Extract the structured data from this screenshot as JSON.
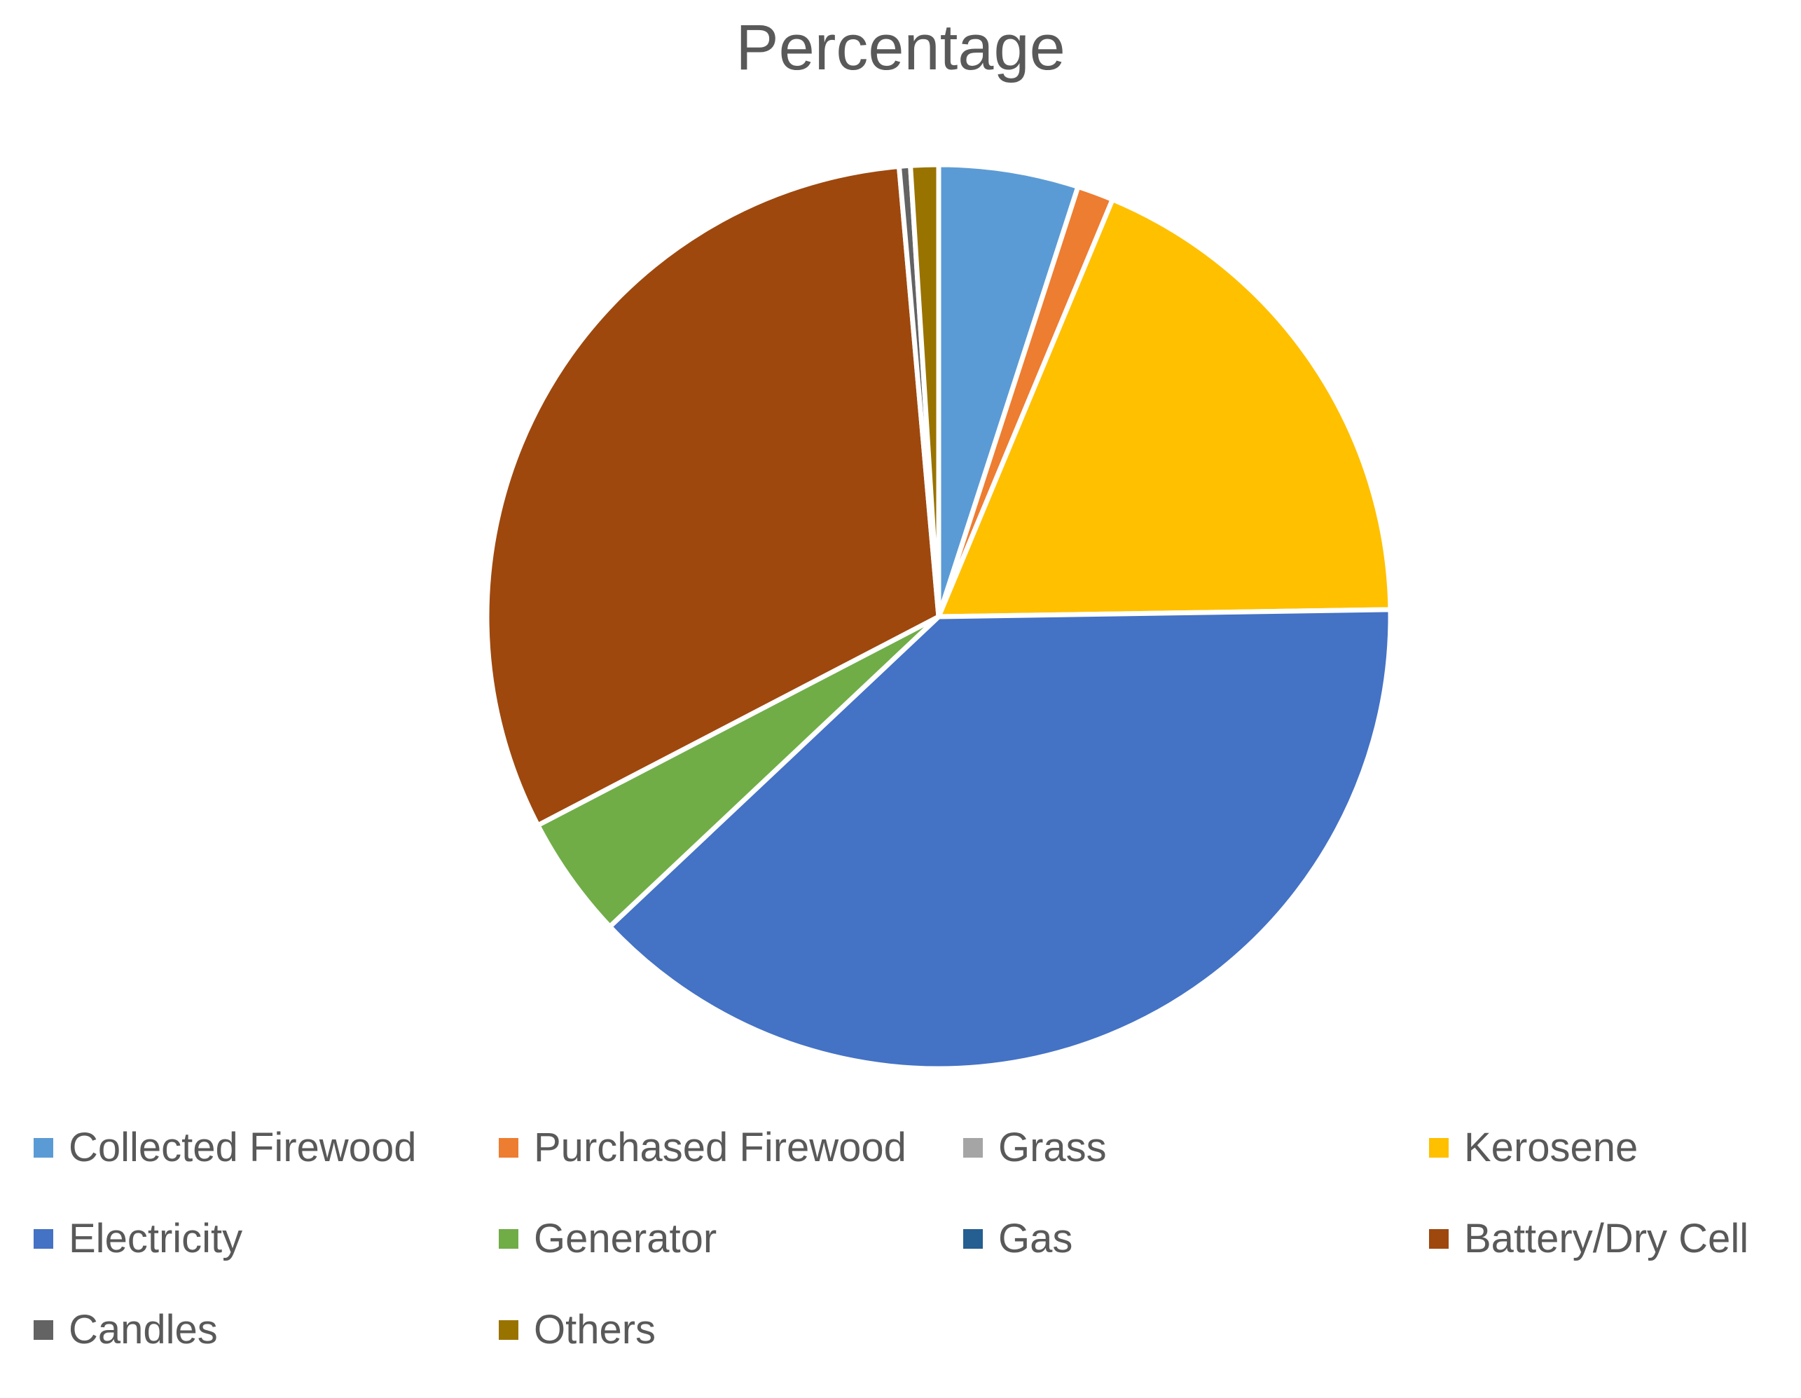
{
  "chart_data": {
    "type": "pie",
    "title": "Percentage",
    "legend_position": "bottom",
    "categories": [
      "Collected Firewood",
      "Purchased Firewood",
      "Grass",
      "Kerosene",
      "Electricity",
      "Generator",
      "Gas",
      "Battery/Dry Cell",
      "Candles",
      "Others"
    ],
    "values": [
      5.0,
      1.3,
      0.0,
      18.5,
      38.3,
      4.4,
      0.0,
      31.3,
      0.4,
      1.0
    ],
    "colors": [
      "#5B9BD5",
      "#ED7D31",
      "#A5A5A5",
      "#FFC000",
      "#4472C4",
      "#70AD47",
      "#255E91",
      "#9E480E",
      "#636363",
      "#997300"
    ]
  }
}
